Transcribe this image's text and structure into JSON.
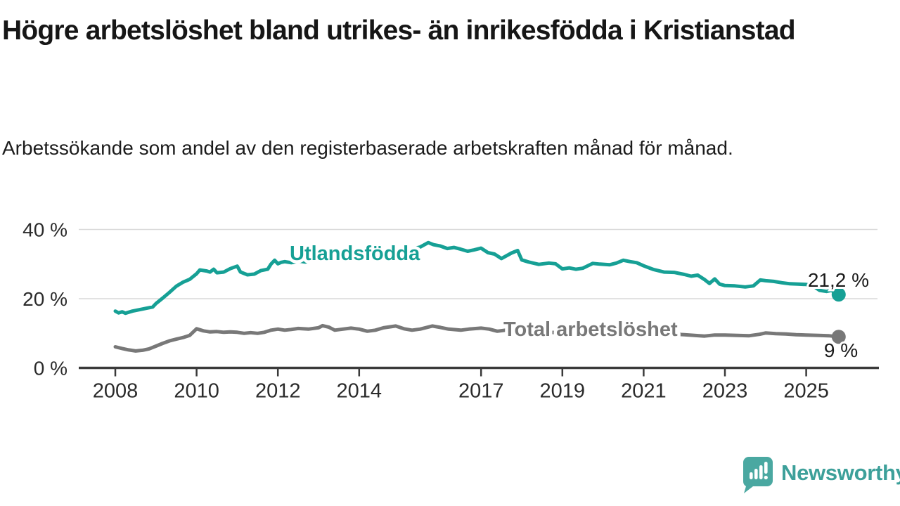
{
  "header": {
    "title": "Högre arbetslöshet bland utrikes- än inrikesfödda i Kristianstad",
    "subtitle": "Arbetssökande som andel av den registerbaserade arbetskraften månad för månad."
  },
  "chart_data": {
    "type": "line",
    "title": "Högre arbetslöshet bland utrikes- än inrikesfödda i Kristianstad",
    "subtitle": "Arbetssökande som andel av den registerbaserade arbetskraften månad för månad.",
    "unit": "%",
    "grid": "horizontal",
    "legend_position": "inline-labels",
    "colors": {
      "accent": "#16a095",
      "gray": "#787878",
      "grid": "#d9d9d9",
      "axis": "#3a3a3a",
      "axis_text": "#2b2b2b",
      "annotation_text": "#1a1a1a"
    },
    "x_axis": {
      "ticks": [
        2008,
        2010,
        2012,
        2014,
        2017,
        2019,
        2021,
        2023,
        2025
      ],
      "range": [
        2007.1,
        2026.7
      ]
    },
    "y_axis": {
      "ticks": [
        {
          "value": 0,
          "label": "0 %"
        },
        {
          "value": 20,
          "label": "20 %"
        },
        {
          "value": 40,
          "label": "40 %"
        }
      ],
      "range": [
        0,
        42
      ]
    },
    "series": [
      {
        "name": "Utlandsfödda",
        "color": "#16a095",
        "end_label": "21,2 %",
        "end_value": 21.2,
        "points": [
          [
            2008.0,
            16.4
          ],
          [
            2008.08,
            15.9
          ],
          [
            2008.17,
            16.2
          ],
          [
            2008.25,
            15.8
          ],
          [
            2008.42,
            16.4
          ],
          [
            2008.58,
            16.8
          ],
          [
            2008.75,
            17.2
          ],
          [
            2008.92,
            17.6
          ],
          [
            2009.0,
            18.6
          ],
          [
            2009.17,
            20.2
          ],
          [
            2009.33,
            21.8
          ],
          [
            2009.5,
            23.6
          ],
          [
            2009.67,
            24.8
          ],
          [
            2009.83,
            25.6
          ],
          [
            2010.0,
            27.2
          ],
          [
            2010.08,
            28.3
          ],
          [
            2010.25,
            28.0
          ],
          [
            2010.33,
            27.7
          ],
          [
            2010.42,
            28.5
          ],
          [
            2010.5,
            27.5
          ],
          [
            2010.67,
            27.7
          ],
          [
            2010.83,
            28.7
          ],
          [
            2011.0,
            29.4
          ],
          [
            2011.08,
            27.7
          ],
          [
            2011.25,
            26.9
          ],
          [
            2011.42,
            27.1
          ],
          [
            2011.58,
            28.1
          ],
          [
            2011.75,
            28.5
          ],
          [
            2011.83,
            30.0
          ],
          [
            2011.92,
            31.1
          ],
          [
            2012.0,
            30.1
          ],
          [
            2012.08,
            30.5
          ],
          [
            2012.17,
            30.7
          ],
          [
            2012.33,
            30.4
          ],
          [
            2012.5,
            30.9
          ],
          [
            2012.67,
            30.6
          ],
          [
            2012.83,
            31.1
          ],
          [
            2013.0,
            31.4
          ],
          [
            2013.25,
            31.8
          ],
          [
            2013.5,
            31.5
          ],
          [
            2013.75,
            32.1
          ],
          [
            2014.0,
            32.4
          ],
          [
            2014.25,
            32.1
          ],
          [
            2014.5,
            32.7
          ],
          [
            2014.75,
            33.2
          ],
          [
            2015.0,
            33.6
          ],
          [
            2015.25,
            34.2
          ],
          [
            2015.5,
            34.9
          ],
          [
            2015.7,
            36.2
          ],
          [
            2015.83,
            35.6
          ],
          [
            2016.0,
            35.2
          ],
          [
            2016.17,
            34.5
          ],
          [
            2016.33,
            34.8
          ],
          [
            2016.5,
            34.3
          ],
          [
            2016.67,
            33.7
          ],
          [
            2016.83,
            34.1
          ],
          [
            2017.0,
            34.6
          ],
          [
            2017.17,
            33.3
          ],
          [
            2017.33,
            32.9
          ],
          [
            2017.5,
            31.6
          ],
          [
            2017.75,
            33.2
          ],
          [
            2017.9,
            33.9
          ],
          [
            2018.0,
            31.2
          ],
          [
            2018.17,
            30.6
          ],
          [
            2018.42,
            29.9
          ],
          [
            2018.67,
            30.3
          ],
          [
            2018.83,
            30.1
          ],
          [
            2019.0,
            28.6
          ],
          [
            2019.17,
            28.9
          ],
          [
            2019.33,
            28.5
          ],
          [
            2019.5,
            28.8
          ],
          [
            2019.75,
            30.2
          ],
          [
            2019.92,
            30.0
          ],
          [
            2020.17,
            29.8
          ],
          [
            2020.33,
            30.3
          ],
          [
            2020.5,
            31.1
          ],
          [
            2020.67,
            30.7
          ],
          [
            2020.83,
            30.4
          ],
          [
            2021.0,
            29.5
          ],
          [
            2021.25,
            28.4
          ],
          [
            2021.5,
            27.7
          ],
          [
            2021.75,
            27.6
          ],
          [
            2022.0,
            27.0
          ],
          [
            2022.17,
            26.5
          ],
          [
            2022.33,
            26.8
          ],
          [
            2022.5,
            25.5
          ],
          [
            2022.62,
            24.4
          ],
          [
            2022.75,
            25.7
          ],
          [
            2022.87,
            24.2
          ],
          [
            2023.0,
            23.8
          ],
          [
            2023.25,
            23.7
          ],
          [
            2023.5,
            23.4
          ],
          [
            2023.7,
            23.7
          ],
          [
            2023.87,
            25.4
          ],
          [
            2024.0,
            25.2
          ],
          [
            2024.2,
            25.0
          ],
          [
            2024.4,
            24.6
          ],
          [
            2024.6,
            24.3
          ],
          [
            2024.8,
            24.2
          ],
          [
            2025.0,
            24.1
          ],
          [
            2025.17,
            23.7
          ],
          [
            2025.33,
            22.4
          ],
          [
            2025.5,
            22.1
          ],
          [
            2025.62,
            22.4
          ],
          [
            2025.8,
            21.2
          ]
        ]
      },
      {
        "name": "Total arbetslöshet",
        "color": "#787878",
        "end_label": "9 %",
        "end_value": 9.0,
        "points": [
          [
            2008.0,
            6.1
          ],
          [
            2008.17,
            5.6
          ],
          [
            2008.33,
            5.2
          ],
          [
            2008.5,
            4.9
          ],
          [
            2008.67,
            5.1
          ],
          [
            2008.83,
            5.5
          ],
          [
            2009.0,
            6.3
          ],
          [
            2009.17,
            7.1
          ],
          [
            2009.33,
            7.8
          ],
          [
            2009.5,
            8.3
          ],
          [
            2009.67,
            8.8
          ],
          [
            2009.83,
            9.4
          ],
          [
            2010.0,
            11.3
          ],
          [
            2010.17,
            10.7
          ],
          [
            2010.33,
            10.4
          ],
          [
            2010.5,
            10.5
          ],
          [
            2010.67,
            10.3
          ],
          [
            2010.83,
            10.4
          ],
          [
            2011.0,
            10.3
          ],
          [
            2011.17,
            10.0
          ],
          [
            2011.33,
            10.2
          ],
          [
            2011.5,
            10.0
          ],
          [
            2011.67,
            10.3
          ],
          [
            2011.83,
            10.9
          ],
          [
            2012.0,
            11.2
          ],
          [
            2012.17,
            10.9
          ],
          [
            2012.33,
            11.1
          ],
          [
            2012.5,
            11.4
          ],
          [
            2012.75,
            11.2
          ],
          [
            2013.0,
            11.6
          ],
          [
            2013.1,
            12.2
          ],
          [
            2013.25,
            11.8
          ],
          [
            2013.4,
            10.9
          ],
          [
            2013.6,
            11.2
          ],
          [
            2013.8,
            11.5
          ],
          [
            2014.0,
            11.2
          ],
          [
            2014.2,
            10.6
          ],
          [
            2014.4,
            10.9
          ],
          [
            2014.6,
            11.6
          ],
          [
            2014.9,
            12.1
          ],
          [
            2015.1,
            11.3
          ],
          [
            2015.3,
            10.9
          ],
          [
            2015.5,
            11.2
          ],
          [
            2015.8,
            12.1
          ],
          [
            2016.0,
            11.7
          ],
          [
            2016.2,
            11.2
          ],
          [
            2016.5,
            10.9
          ],
          [
            2016.7,
            11.2
          ],
          [
            2017.0,
            11.5
          ],
          [
            2017.2,
            11.2
          ],
          [
            2017.4,
            10.6
          ],
          [
            2017.6,
            10.9
          ],
          [
            2017.8,
            10.8
          ],
          [
            2018.0,
            10.7
          ],
          [
            2018.33,
            10.5
          ],
          [
            2018.67,
            10.3
          ],
          [
            2019.0,
            10.1
          ],
          [
            2019.33,
            9.9
          ],
          [
            2019.67,
            10.0
          ],
          [
            2020.0,
            10.3
          ],
          [
            2020.25,
            10.9
          ],
          [
            2020.5,
            11.2
          ],
          [
            2020.75,
            10.8
          ],
          [
            2021.0,
            10.4
          ],
          [
            2021.33,
            10.1
          ],
          [
            2021.67,
            9.8
          ],
          [
            2022.0,
            9.6
          ],
          [
            2022.25,
            9.4
          ],
          [
            2022.5,
            9.2
          ],
          [
            2022.75,
            9.5
          ],
          [
            2023.0,
            9.5
          ],
          [
            2023.3,
            9.4
          ],
          [
            2023.6,
            9.3
          ],
          [
            2023.85,
            9.7
          ],
          [
            2024.0,
            10.1
          ],
          [
            2024.25,
            9.9
          ],
          [
            2024.5,
            9.8
          ],
          [
            2024.75,
            9.6
          ],
          [
            2025.0,
            9.5
          ],
          [
            2025.3,
            9.4
          ],
          [
            2025.55,
            9.3
          ],
          [
            2025.8,
            9.0
          ]
        ]
      }
    ]
  },
  "footer": {
    "brand": "Newsworthy",
    "logo_icon": "newsworthy-speech-bubble-chart-icon",
    "logo_color": "#4aa8a1"
  }
}
